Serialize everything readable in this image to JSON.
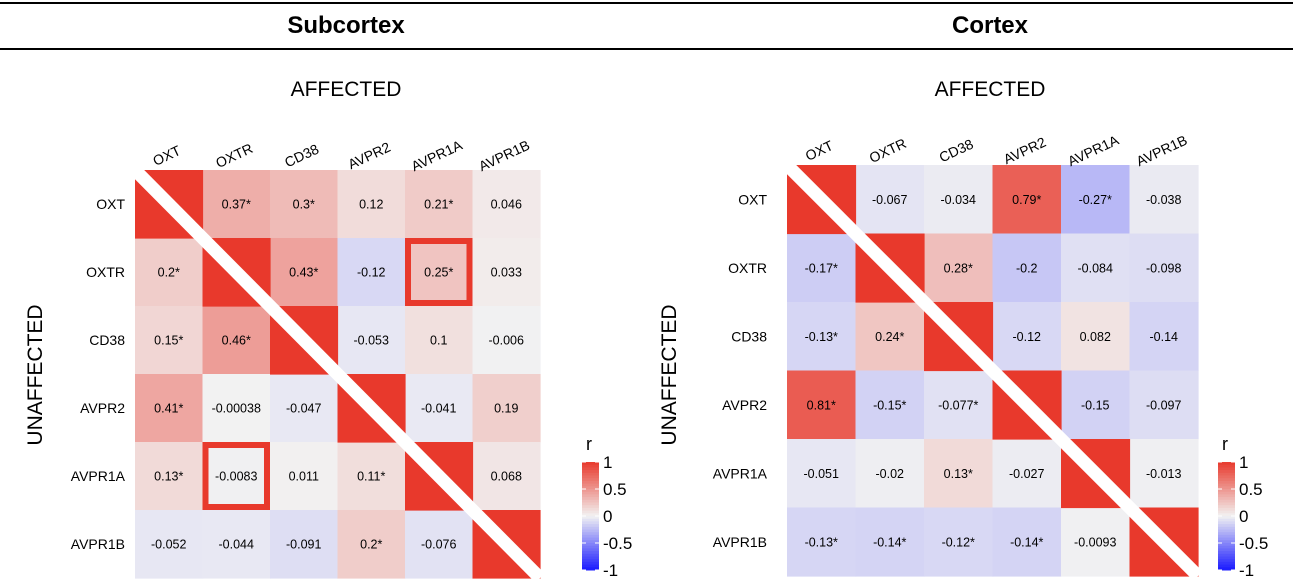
{
  "panels": [
    {
      "title": "Subcortex"
    },
    {
      "title": "Cortex"
    }
  ],
  "chart_data": [
    {
      "type": "heatmap",
      "title": "Subcortex",
      "upper_label": "AFFECTED",
      "lower_label": "UNAFFECTED",
      "genes": [
        "OXT",
        "OXTR",
        "CD38",
        "AVPR2",
        "AVPR1A",
        "AVPR1B"
      ],
      "matrix": [
        [
          null,
          "0.37*",
          "0.3*",
          "0.12",
          "0.21*",
          "0.046"
        ],
        [
          "0.2*",
          null,
          "0.43*",
          "-0.12",
          "0.25*",
          "0.033"
        ],
        [
          "0.15*",
          "0.46*",
          null,
          "-0.053",
          "0.1",
          "-0.006"
        ],
        [
          "0.41*",
          "-0.00038",
          "-0.047",
          null,
          "-0.041",
          "0.19"
        ],
        [
          "0.13*",
          "-0.0083",
          "0.011",
          "0.11*",
          null,
          "0.068"
        ],
        [
          "-0.052",
          "-0.044",
          "-0.091",
          "0.2*",
          "-0.076",
          null
        ]
      ],
      "highlighted_cells": [
        [
          1,
          4
        ],
        [
          4,
          1
        ]
      ],
      "legend": {
        "title": "r",
        "ticks": [
          "1",
          "0.5",
          "0",
          "-0.5",
          "-1"
        ],
        "range": [
          -1,
          1
        ]
      }
    },
    {
      "type": "heatmap",
      "title": "Cortex",
      "upper_label": "AFFECTED",
      "lower_label": "UNAFFECTED",
      "genes": [
        "OXT",
        "OXTR",
        "CD38",
        "AVPR2",
        "AVPR1A",
        "AVPR1B"
      ],
      "matrix": [
        [
          null,
          "-0.067",
          "-0.034",
          "0.79*",
          "-0.27*",
          "-0.038"
        ],
        [
          "-0.17*",
          null,
          "0.28*",
          "-0.2",
          "-0.084",
          "-0.098"
        ],
        [
          "-0.13*",
          "0.24*",
          null,
          "-0.12",
          "0.082",
          "-0.14"
        ],
        [
          "0.81*",
          "-0.15*",
          "-0.077*",
          null,
          "-0.15",
          "-0.097"
        ],
        [
          "-0.051",
          "-0.02",
          "0.13*",
          "-0.027",
          null,
          "-0.013"
        ],
        [
          "-0.13*",
          "-0.14*",
          "-0.12*",
          "-0.14*",
          "-0.0093",
          null
        ]
      ],
      "highlighted_cells": [],
      "legend": {
        "title": "r",
        "ticks": [
          "1",
          "0.5",
          "0",
          "-0.5",
          "-1"
        ],
        "range": [
          -1,
          1
        ]
      }
    }
  ],
  "colors": {
    "positive": "#e8392c",
    "neutral": "#f2f2f2",
    "negative": "#1a1aff",
    "highlight": "#e8392c"
  }
}
